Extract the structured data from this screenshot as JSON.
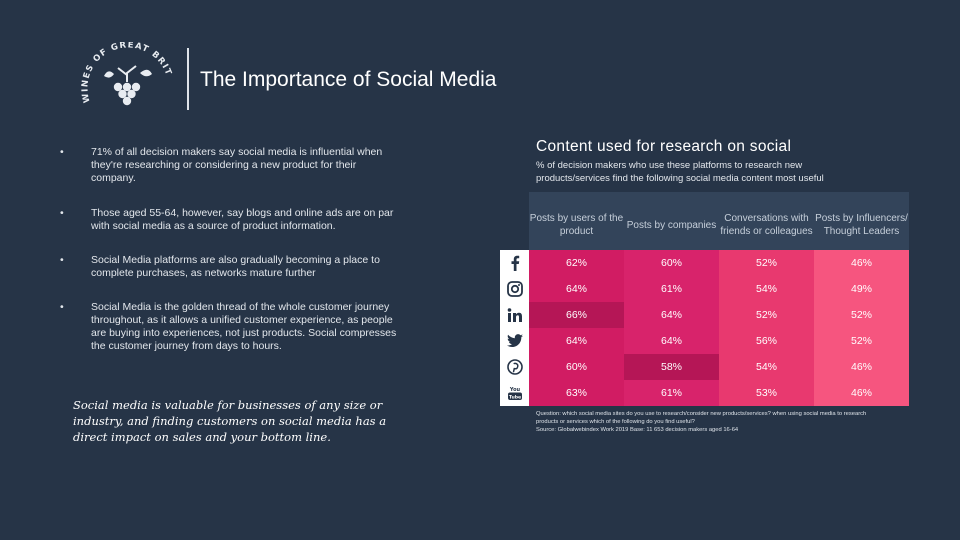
{
  "header": {
    "title": "The Importance of Social Media",
    "logo_text": "WINES OF GREAT BRITAIN"
  },
  "bullets": [
    "71% of all decision makers say social media is influential when they're researching or considering a new product for their company.",
    "Those aged 55-64, however, say blogs and online ads are on par with social media as a source of product information.",
    "Social Media platforms are also gradually becoming a place to complete purchases, as networks mature further",
    "Social Media is the golden thread of the whole customer journey throughout, as it allows a unified customer experience, as people are buying into experiences, not just products. Social compresses the customer journey from days to hours."
  ],
  "quote": "Social media is valuable for businesses of any size or industry, and finding customers on social media has a direct impact on sales and your bottom line.",
  "content": {
    "title": "Content used for research on social",
    "subtitle": "% of decision makers who use these platforms to research new products/services find the following social media content most useful"
  },
  "colors": {
    "background": "#263447",
    "header_cell": "#33445a",
    "accent_pink": "#d11c63",
    "light_pink": "#f6557f"
  },
  "chart_data": {
    "type": "table",
    "columns": [
      "Posts by users of the product",
      "Posts by companies",
      "Conversations with friends or colleagues",
      "Posts by Influencers/ Thought Leaders"
    ],
    "rows": [
      {
        "platform_icon": "facebook-icon",
        "values": [
          "62%",
          "60%",
          "52%",
          "46%"
        ]
      },
      {
        "platform_icon": "instagram-icon",
        "values": [
          "64%",
          "61%",
          "54%",
          "49%"
        ]
      },
      {
        "platform_icon": "linkedin-icon",
        "values": [
          "66%",
          "64%",
          "52%",
          "52%"
        ]
      },
      {
        "platform_icon": "twitter-icon",
        "values": [
          "64%",
          "64%",
          "56%",
          "52%"
        ]
      },
      {
        "platform_icon": "pinterest-icon",
        "values": [
          "60%",
          "58%",
          "54%",
          "46%"
        ]
      },
      {
        "platform_icon": "youtube-icon",
        "values": [
          "63%",
          "61%",
          "53%",
          "46%"
        ]
      }
    ],
    "highlighted": [
      [
        2,
        0
      ],
      [
        4,
        1
      ]
    ]
  },
  "footnote": {
    "question": "Question: which social media sites do you use to research/consider new products/services? when using social media to research products or services which of the following do you find useful?",
    "source": "Source: Globalwebindex Work 2019 Base: 11 653 decision makers aged 16-64"
  }
}
